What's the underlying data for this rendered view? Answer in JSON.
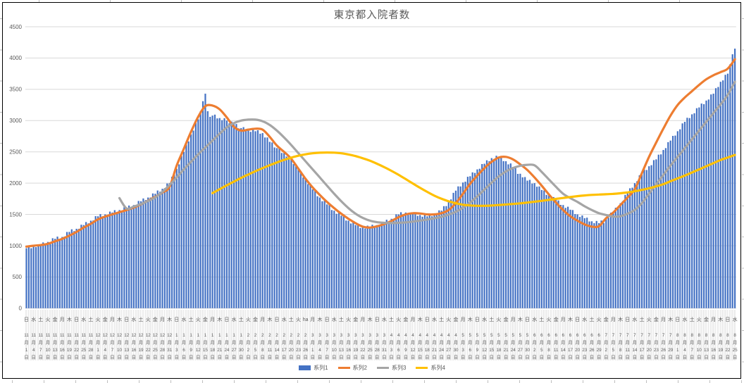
{
  "chart_data": {
    "type": "combo",
    "title": "東京都入院者数",
    "ylim": [
      0,
      4500
    ],
    "ytick_step": 500,
    "y_tick_labels": [
      "0",
      "500",
      "1000",
      "1500",
      "2000",
      "2500",
      "3000",
      "3500",
      "4000",
      "4500"
    ],
    "grid": true,
    "legend_position": "bottom",
    "x_unit": "day",
    "tick_every_days": 3,
    "month_suffix": "月",
    "day_suffix": "日",
    "colors": {
      "gridline": "#D9D9D9",
      "axis_text": "#595959",
      "frame": "#000000"
    },
    "x_tick_labels": [
      [
        "日",
        11,
        1
      ],
      [
        "水",
        11,
        4
      ],
      [
        "土",
        11,
        7
      ],
      [
        "火",
        11,
        10
      ],
      [
        "金",
        11,
        13
      ],
      [
        "月",
        11,
        16
      ],
      [
        "木",
        11,
        19
      ],
      [
        "日",
        11,
        22
      ],
      [
        "水",
        11,
        25
      ],
      [
        "土",
        11,
        28
      ],
      [
        "火",
        12,
        1
      ],
      [
        "金",
        12,
        4
      ],
      [
        "月",
        12,
        7
      ],
      [
        "木",
        12,
        10
      ],
      [
        "日",
        12,
        13
      ],
      [
        "水",
        12,
        16
      ],
      [
        "土",
        12,
        19
      ],
      [
        "火",
        12,
        22
      ],
      [
        "金",
        12,
        25
      ],
      [
        "月",
        12,
        28
      ],
      [
        "木",
        12,
        31
      ],
      [
        "日",
        1,
        3
      ],
      [
        "水",
        1,
        6
      ],
      [
        "土",
        1,
        9
      ],
      [
        "火",
        1,
        12
      ],
      [
        "金",
        1,
        15
      ],
      [
        "月",
        1,
        18
      ],
      [
        "木",
        1,
        21
      ],
      [
        "日",
        1,
        24
      ],
      [
        "水",
        1,
        27
      ],
      [
        "土",
        1,
        30
      ],
      [
        "火",
        2,
        2
      ],
      [
        "金",
        2,
        5
      ],
      [
        "月",
        2,
        8
      ],
      [
        "木",
        2,
        11
      ],
      [
        "日",
        2,
        14
      ],
      [
        "水",
        2,
        17
      ],
      [
        "土",
        2,
        20
      ],
      [
        "火",
        2,
        23
      ],
      [
        "ha",
        2,
        26
      ],
      [
        "月",
        3,
        1
      ],
      [
        "木",
        3,
        4
      ],
      [
        "日",
        3,
        7
      ],
      [
        "水",
        3,
        10
      ],
      [
        "土",
        3,
        13
      ],
      [
        "火",
        3,
        16
      ],
      [
        "金",
        3,
        19
      ],
      [
        "月",
        3,
        22
      ],
      [
        "木",
        3,
        25
      ],
      [
        "日",
        3,
        28
      ],
      [
        "水",
        3,
        31
      ],
      [
        "土",
        4,
        3
      ],
      [
        "火",
        4,
        6
      ],
      [
        "金",
        4,
        9
      ],
      [
        "月",
        4,
        12
      ],
      [
        "木",
        4,
        15
      ],
      [
        "日",
        4,
        18
      ],
      [
        "水",
        4,
        21
      ],
      [
        "土",
        4,
        24
      ],
      [
        "火",
        4,
        27
      ],
      [
        "金",
        4,
        30
      ],
      [
        "月",
        5,
        3
      ],
      [
        "木",
        5,
        6
      ],
      [
        "日",
        5,
        9
      ],
      [
        "水",
        5,
        12
      ],
      [
        "土",
        5,
        15
      ],
      [
        "火",
        5,
        18
      ],
      [
        "金",
        5,
        21
      ],
      [
        "月",
        5,
        24
      ],
      [
        "木",
        5,
        27
      ],
      [
        "日",
        5,
        30
      ],
      [
        "水",
        6,
        2
      ],
      [
        "土",
        6,
        5
      ],
      [
        "火",
        6,
        8
      ],
      [
        "金",
        6,
        11
      ],
      [
        "月",
        6,
        14
      ],
      [
        "木",
        6,
        17
      ],
      [
        "日",
        6,
        20
      ],
      [
        "水",
        6,
        23
      ],
      [
        "土",
        6,
        26
      ],
      [
        "火",
        6,
        29
      ],
      [
        "金",
        7,
        2
      ],
      [
        "月",
        7,
        5
      ],
      [
        "木",
        7,
        8
      ],
      [
        "日",
        7,
        11
      ],
      [
        "水",
        7,
        14
      ],
      [
        "土",
        7,
        17
      ],
      [
        "火",
        7,
        20
      ],
      [
        "金",
        7,
        23
      ],
      [
        "月",
        7,
        26
      ],
      [
        "木",
        7,
        29
      ],
      [
        "日",
        8,
        1
      ],
      [
        "水",
        8,
        4
      ],
      [
        "土",
        8,
        7
      ],
      [
        "火",
        8,
        10
      ],
      [
        "金",
        8,
        13
      ],
      [
        "月",
        8,
        16
      ],
      [
        "木",
        8,
        19
      ],
      [
        "日",
        8,
        22
      ],
      [
        "水",
        8,
        25
      ]
    ],
    "series": [
      {
        "name": "系列1",
        "type": "bar",
        "color": "#4472C4",
        "daily_values": [
          960,
          995,
          960,
          990,
          977,
          1022,
          1010,
          1052,
          1024,
          1060,
          1057,
          1119,
          1110,
          1145,
          1110,
          1140,
          1147,
          1219,
          1220,
          1262,
          1233,
          1270,
          1270,
          1335,
          1330,
          1378,
          1357,
          1400,
          1403,
          1472,
          1470,
          1505,
          1470,
          1500,
          1490,
          1545,
          1530,
          1568,
          1537,
          1570,
          1560,
          1615,
          1600,
          1642,
          1613,
          1650,
          1650,
          1715,
          1710,
          1755,
          1730,
          1770,
          1770,
          1835,
          1830,
          1882,
          1863,
          1910,
          1920,
          1995,
          2000,
          2102,
          2133,
          2230,
          2300,
          2435,
          2500,
          2618,
          2667,
          2780,
          2840,
          2965,
          3020,
          3150,
          3310,
          3430,
          3150,
          3060,
          3080,
          3095,
          3035,
          3040,
          3007,
          3038,
          3000,
          2955,
          2985,
          2940,
          2945,
          2875,
          2880,
          2895,
          2840,
          2850,
          2820,
          2865,
          2830,
          2845,
          2790,
          2800,
          2730,
          2730,
          2660,
          2650,
          2570,
          2560,
          2558,
          2482,
          2480,
          2425,
          2435,
          2380,
          2305,
          2295,
          2220,
          2190,
          2090,
          2060,
          1985,
          1975,
          1900,
          1880,
          1790,
          1770,
          1710,
          1720,
          1660,
          1650,
          1570,
          1560,
          1510,
          1530,
          1480,
          1478,
          1402,
          1400,
          1355,
          1375,
          1330,
          1342,
          1283,
          1290,
          1275,
          1320,
          1300,
          1335,
          1300,
          1330,
          1323,
          1380,
          1370,
          1415,
          1390,
          1430,
          1433,
          1502,
          1500,
          1535,
          1500,
          1530,
          1505,
          1528,
          1510,
          1528,
          1477,
          1490,
          1463,
          1508,
          1470,
          1505,
          1470,
          1500,
          1500,
          1565,
          1560,
          1632,
          1633,
          1700,
          1740,
          1845,
          1880,
          1948,
          1947,
          2010,
          2023,
          2102,
          2110,
          2172,
          2163,
          2220,
          2230,
          2305,
          2310,
          2365,
          2350,
          2400,
          2387,
          2438,
          2420,
          2421,
          2352,
          2350,
          2300,
          2315,
          2260,
          2243,
          2148,
          2150,
          2093,
          2097,
          2040,
          2052,
          1993,
          2000,
          1943,
          1947,
          1890,
          1883,
          1812,
          1810,
          1763,
          1777,
          1730,
          1723,
          1652,
          1650,
          1605,
          1623,
          1575,
          1570,
          1505,
          1500,
          1460,
          1483,
          1440,
          1448,
          1387,
          1390,
          1360,
          1395,
          1360,
          1403,
          1362,
          1430,
          1447,
          1528,
          1540,
          1607,
          1613,
          1680,
          1713,
          1812,
          1840,
          1918,
          1927,
          2000,
          2030,
          2125,
          2150,
          2215,
          2210,
          2270,
          2287,
          2368,
          2380,
          2455,
          2460,
          2530,
          2560,
          2655,
          2680,
          2755,
          2760,
          2830,
          2860,
          2955,
          2980,
          3045,
          3040,
          3100,
          3117,
          3198,
          3210,
          3272,
          3262,
          3320,
          3337,
          3418,
          3430,
          3518,
          3537,
          3620,
          3643,
          3732,
          3750,
          3900,
          4060,
          4150
        ]
      },
      {
        "name": "系列2",
        "type": "line",
        "color": "#ED7D31",
        "values_at_ticks": [
          985,
          1000,
          1010,
          1030,
          1070,
          1110,
          1160,
          1220,
          1290,
          1350,
          1420,
          1465,
          1500,
          1535,
          1570,
          1610,
          1660,
          1720,
          1780,
          1850,
          1940,
          2280,
          2550,
          2820,
          3060,
          3230,
          3240,
          3180,
          3050,
          2900,
          2840,
          2855,
          2870,
          2855,
          2740,
          2600,
          2500,
          2390,
          2230,
          2070,
          1930,
          1810,
          1700,
          1600,
          1510,
          1430,
          1360,
          1305,
          1290,
          1310,
          1345,
          1395,
          1455,
          1500,
          1520,
          1515,
          1500,
          1500,
          1520,
          1570,
          1680,
          1830,
          1990,
          2120,
          2240,
          2340,
          2410,
          2420,
          2380,
          2300,
          2210,
          2090,
          1960,
          1820,
          1690,
          1570,
          1470,
          1400,
          1340,
          1305,
          1310,
          1440,
          1530,
          1650,
          1770,
          1900,
          2160,
          2420,
          2650,
          2870,
          3080,
          3250,
          3370,
          3470,
          3570,
          3660,
          3725,
          3775,
          3830,
          3980
        ]
      },
      {
        "name": "系列3",
        "type": "line",
        "color": "#A5A5A5",
        "values_at_ticks": [
          null,
          null,
          null,
          null,
          null,
          null,
          null,
          null,
          null,
          null,
          null,
          null,
          null,
          1760,
          1595,
          1625,
          1665,
          1715,
          1770,
          1860,
          1970,
          2090,
          2220,
          2340,
          2460,
          2570,
          2680,
          2790,
          2890,
          2960,
          3000,
          3015,
          3015,
          2990,
          2930,
          2840,
          2730,
          2610,
          2480,
          2350,
          2220,
          2090,
          1960,
          1830,
          1710,
          1600,
          1510,
          1445,
          1400,
          1375,
          1365,
          1362,
          1365,
          1372,
          1385,
          1400,
          1418,
          1438,
          1462,
          1497,
          1542,
          1607,
          1687,
          1787,
          1897,
          2007,
          2107,
          2187,
          2242,
          2277,
          2293,
          2285,
          2180,
          2060,
          1940,
          1830,
          1760,
          1700,
          1630,
          1570,
          1520,
          1490,
          1465,
          1470,
          1510,
          1570,
          1680,
          1830,
          1980,
          2130,
          2280,
          2420,
          2560,
          2700,
          2840,
          2980,
          3120,
          3260,
          3410,
          3620
        ]
      },
      {
        "name": "系列4",
        "type": "line",
        "color": "#FFC000",
        "values_at_ticks": [
          null,
          null,
          null,
          null,
          null,
          null,
          null,
          null,
          null,
          null,
          null,
          null,
          null,
          null,
          null,
          null,
          null,
          null,
          null,
          null,
          null,
          null,
          null,
          null,
          null,
          null,
          1840,
          1903,
          1965,
          2025,
          2083,
          2138,
          2190,
          2240,
          2287,
          2331,
          2372,
          2408,
          2438,
          2461,
          2477,
          2486,
          2490,
          2487,
          2477,
          2458,
          2432,
          2398,
          2358,
          2310,
          2256,
          2197,
          2133,
          2064,
          1994,
          1925,
          1860,
          1800,
          1750,
          1710,
          1678,
          1655,
          1643,
          1638,
          1638,
          1642,
          1650,
          1658,
          1667,
          1677,
          1690,
          1703,
          1717,
          1732,
          1748,
          1763,
          1778,
          1792,
          1803,
          1812,
          1818,
          1822,
          1828,
          1838,
          1852,
          1870,
          1892,
          1918,
          1948,
          1983,
          2030,
          2075,
          2120,
          2170,
          2220,
          2270,
          2320,
          2370,
          2410,
          2450
        ]
      }
    ]
  }
}
